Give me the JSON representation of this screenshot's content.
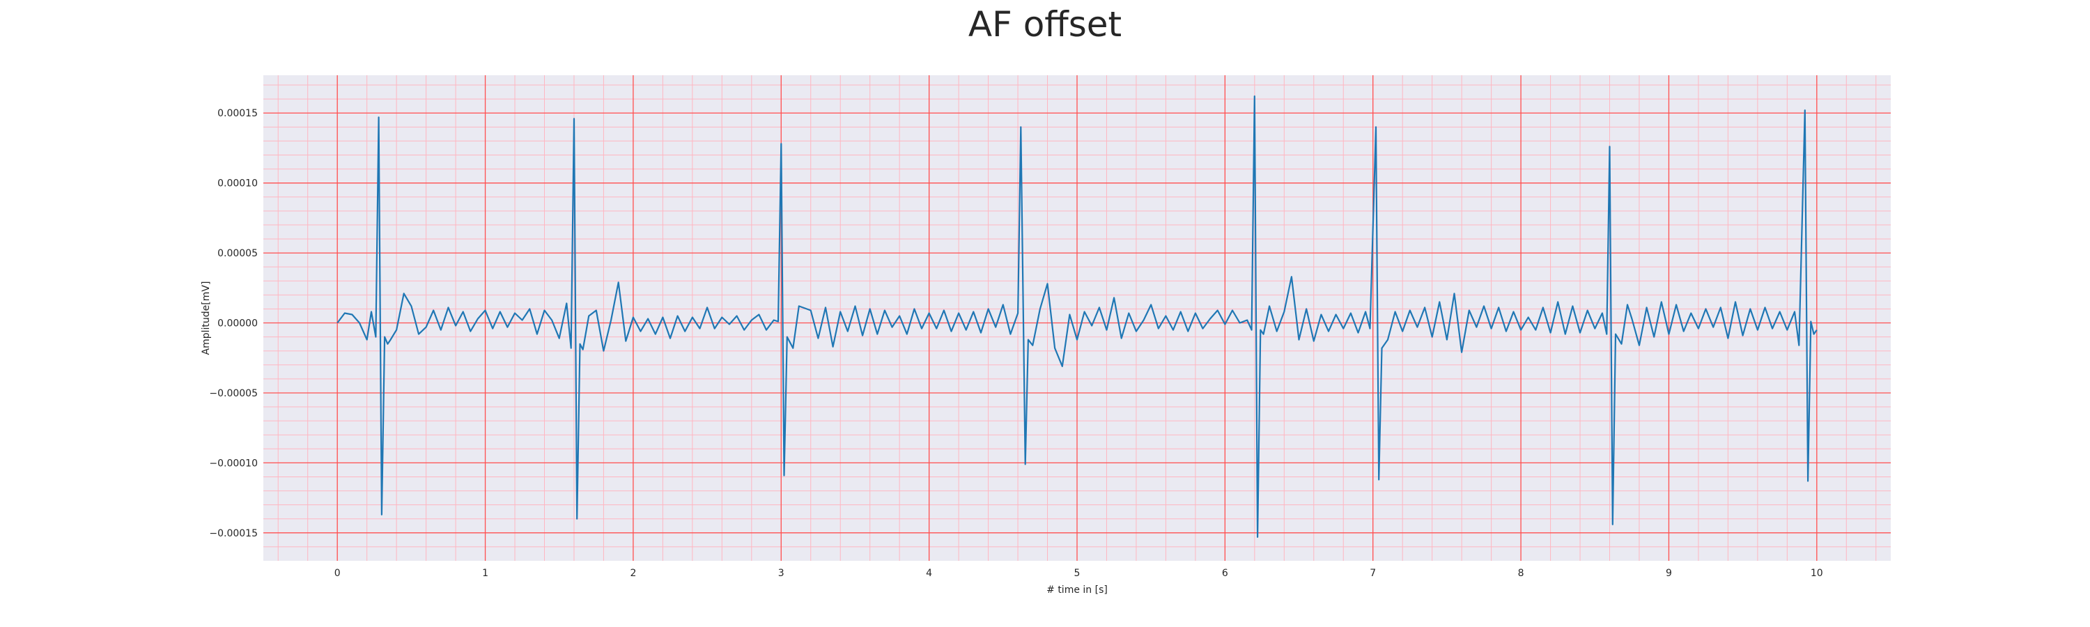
{
  "chart_data": {
    "type": "line",
    "title": "AF offset",
    "xlabel": "# time in [s]",
    "ylabel": "Amplitude[mV]",
    "xlim": [
      -0.5,
      10.5
    ],
    "ylim": [
      -0.00017,
      0.000177
    ],
    "x_ticks": [
      0,
      1,
      2,
      3,
      4,
      5,
      6,
      7,
      8,
      9,
      10
    ],
    "x_tick_labels": [
      "0",
      "1",
      "2",
      "3",
      "4",
      "5",
      "6",
      "7",
      "8",
      "9",
      "10"
    ],
    "y_ticks": [
      0.00015,
      0.0001,
      5e-05,
      0.0,
      -5e-05,
      -0.0001,
      -0.00015
    ],
    "y_tick_labels": [
      "0.00015",
      "0.00010",
      "0.00005",
      "0.00000",
      "−0.00005",
      "−0.00010",
      "−0.00015"
    ],
    "grid": true,
    "legend": "none",
    "colors": {
      "line": "#1f77b4",
      "plot_background": "#eaeaf2",
      "major_grid": "#ff5050",
      "minor_grid": "#ffb6c1"
    },
    "series": [
      {
        "x": [
          0.0,
          0.05,
          0.1,
          0.15,
          0.2,
          0.23,
          0.26,
          0.28,
          0.3,
          0.32,
          0.34,
          0.36,
          0.4,
          0.45,
          0.5,
          0.55,
          0.6,
          0.65,
          0.7,
          0.75,
          0.8,
          0.85,
          0.9,
          0.95,
          1.0,
          1.05,
          1.1,
          1.15,
          1.2,
          1.25,
          1.3,
          1.35,
          1.4,
          1.45,
          1.5,
          1.55,
          1.58,
          1.6,
          1.62,
          1.64,
          1.66,
          1.7,
          1.75,
          1.8,
          1.85,
          1.9,
          1.95,
          2.0,
          2.05,
          2.1,
          2.15,
          2.2,
          2.25,
          2.3,
          2.35,
          2.4,
          2.45,
          2.5,
          2.55,
          2.6,
          2.65,
          2.7,
          2.75,
          2.8,
          2.85,
          2.9,
          2.95,
          2.98,
          3.0,
          3.02,
          3.04,
          3.08,
          3.12,
          3.2,
          3.25,
          3.3,
          3.35,
          3.4,
          3.45,
          3.5,
          3.55,
          3.6,
          3.65,
          3.7,
          3.75,
          3.8,
          3.85,
          3.9,
          3.95,
          4.0,
          4.05,
          4.1,
          4.15,
          4.2,
          4.25,
          4.3,
          4.35,
          4.4,
          4.45,
          4.5,
          4.55,
          4.6,
          4.62,
          4.65,
          4.67,
          4.7,
          4.75,
          4.8,
          4.85,
          4.9,
          4.95,
          5.0,
          5.05,
          5.1,
          5.15,
          5.2,
          5.25,
          5.3,
          5.35,
          5.4,
          5.45,
          5.5,
          5.55,
          5.6,
          5.65,
          5.7,
          5.75,
          5.8,
          5.85,
          5.9,
          5.95,
          6.0,
          6.05,
          6.1,
          6.15,
          6.18,
          6.2,
          6.22,
          6.24,
          6.26,
          6.3,
          6.35,
          6.4,
          6.45,
          6.5,
          6.55,
          6.6,
          6.65,
          6.7,
          6.75,
          6.8,
          6.85,
          6.9,
          6.95,
          6.98,
          7.02,
          7.04,
          7.06,
          7.1,
          7.15,
          7.2,
          7.25,
          7.3,
          7.35,
          7.4,
          7.45,
          7.5,
          7.55,
          7.6,
          7.65,
          7.7,
          7.75,
          7.8,
          7.85,
          7.9,
          7.95,
          8.0,
          8.05,
          8.1,
          8.15,
          8.2,
          8.25,
          8.3,
          8.35,
          8.4,
          8.45,
          8.5,
          8.55,
          8.58,
          8.6,
          8.62,
          8.64,
          8.68,
          8.72,
          8.75,
          8.8,
          8.85,
          8.9,
          8.95,
          9.0,
          9.05,
          9.1,
          9.15,
          9.2,
          9.25,
          9.3,
          9.35,
          9.4,
          9.45,
          9.5,
          9.55,
          9.6,
          9.65,
          9.7,
          9.75,
          9.8,
          9.85,
          9.88,
          9.92,
          9.94,
          9.96,
          9.98,
          10.0
        ],
        "y": [
          0.0,
          7e-06,
          6e-06,
          0.0,
          -1.2e-05,
          8e-06,
          -1e-05,
          0.000147,
          -0.000137,
          -1e-05,
          -1.5e-05,
          -1.2e-05,
          -5e-06,
          2.1e-05,
          1.2e-05,
          -8e-06,
          -3e-06,
          9e-06,
          -5e-06,
          1.1e-05,
          -2e-06,
          8e-06,
          -6e-06,
          3e-06,
          9e-06,
          -4e-06,
          8e-06,
          -3e-06,
          7e-06,
          2e-06,
          1e-05,
          -8e-06,
          9e-06,
          2e-06,
          -1.1e-05,
          1.4e-05,
          -1.8e-05,
          0.000146,
          -0.00014,
          -1.5e-05,
          -1.9e-05,
          5e-06,
          9e-06,
          -2e-05,
          2e-06,
          2.9e-05,
          -1.3e-05,
          4e-06,
          -6e-06,
          3e-06,
          -8e-06,
          4e-06,
          -1.1e-05,
          5e-06,
          -6e-06,
          4e-06,
          -4e-06,
          1.1e-05,
          -4e-06,
          4e-06,
          -1e-06,
          5e-06,
          -5e-06,
          2e-06,
          6e-06,
          -5e-06,
          2e-06,
          1e-06,
          0.000128,
          -0.000109,
          -1e-05,
          -1.8e-05,
          1.2e-05,
          9e-06,
          -1.1e-05,
          1.1e-05,
          -1.7e-05,
          8e-06,
          -6e-06,
          1.2e-05,
          -9e-06,
          1e-05,
          -8e-06,
          9e-06,
          -3e-06,
          5e-06,
          -8e-06,
          1e-05,
          -4e-06,
          7e-06,
          -4e-06,
          9e-06,
          -6e-06,
          7e-06,
          -5e-06,
          8e-06,
          -7e-06,
          1e-05,
          -3e-06,
          1.3e-05,
          -8e-06,
          7e-06,
          0.00014,
          -0.000101,
          -1.2e-05,
          -1.6e-05,
          1e-05,
          2.8e-05,
          -1.8e-05,
          -3.1e-05,
          6e-06,
          -1.2e-05,
          8e-06,
          -2e-06,
          1.1e-05,
          -5e-06,
          1.8e-05,
          -1.1e-05,
          7e-06,
          -6e-06,
          2e-06,
          1.3e-05,
          -4e-06,
          5e-06,
          -5e-06,
          8e-06,
          -6e-06,
          7e-06,
          -4e-06,
          3e-06,
          9e-06,
          -1e-06,
          9e-06,
          0.0,
          2e-06,
          -5e-06,
          0.000162,
          -0.000153,
          -5e-06,
          -8e-06,
          1.2e-05,
          -6e-06,
          8e-06,
          3.3e-05,
          -1.2e-05,
          1e-05,
          -1.3e-05,
          6e-06,
          -6e-06,
          6e-06,
          -4e-06,
          7e-06,
          -7e-06,
          8e-06,
          -4e-06,
          0.00014,
          -0.000112,
          -1.8e-05,
          -1.2e-05,
          8e-06,
          -6e-06,
          9e-06,
          -3e-06,
          1.1e-05,
          -1e-05,
          1.5e-05,
          -1.2e-05,
          2.1e-05,
          -2.1e-05,
          9e-06,
          -3e-06,
          1.2e-05,
          -4e-06,
          1.1e-05,
          -6e-06,
          8e-06,
          -5e-06,
          4e-06,
          -5e-06,
          1.1e-05,
          -7e-06,
          1.5e-05,
          -8e-06,
          1.2e-05,
          -7e-06,
          9e-06,
          -4e-06,
          7e-06,
          -8e-06,
          0.000126,
          -0.000144,
          -8e-06,
          -1.5e-05,
          1.3e-05,
          3e-06,
          -1.6e-05,
          1.1e-05,
          -1e-05,
          1.5e-05,
          -8e-06,
          1.3e-05,
          -6e-06,
          7e-06,
          -4e-06,
          1e-05,
          -3e-06,
          1.1e-05,
          -1.1e-05,
          1.5e-05,
          -9e-06,
          1e-05,
          -5e-06,
          1.1e-05,
          -4e-06,
          8e-06,
          -5e-06,
          8e-06,
          -1.6e-05,
          0.000152,
          -0.000113,
          1e-06,
          -8e-06,
          -5e-06
        ]
      }
    ]
  }
}
